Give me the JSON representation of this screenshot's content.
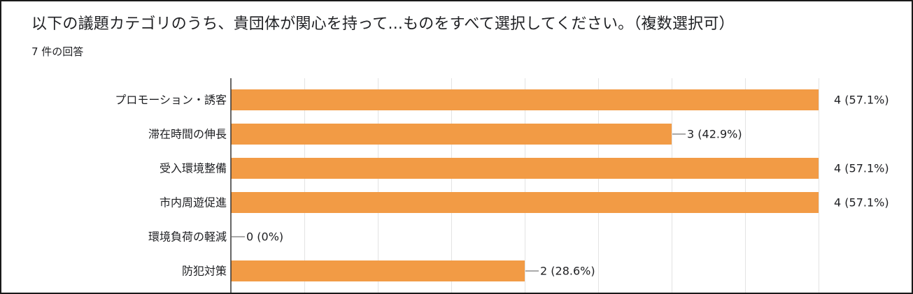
{
  "header": {
    "title": "以下の議題カテゴリのうち、貴団体が関心を持って...ものをすべて選択してください。（複数選択可）",
    "response_count": "7 件の回答"
  },
  "colors": {
    "bar": "#f29b45",
    "grid": "#e3e3e3",
    "axis": "#333333",
    "text": "#202124"
  },
  "chart_data": {
    "type": "bar",
    "orientation": "horizontal",
    "categories": [
      "プロモーション・誘客",
      "滞在時間の伸長",
      "受入環境整備",
      "市内周遊促進",
      "環境負荷の軽減",
      "防犯対策"
    ],
    "values": [
      4,
      3,
      4,
      4,
      0,
      2
    ],
    "data_labels": [
      "4 (57.1%)",
      "3 (42.9%)",
      "4 (57.1%)",
      "4 (57.1%)",
      "0 (0%)",
      "2 (28.6%)"
    ],
    "xlim": [
      0,
      4
    ],
    "grid": true,
    "legend": "none"
  }
}
